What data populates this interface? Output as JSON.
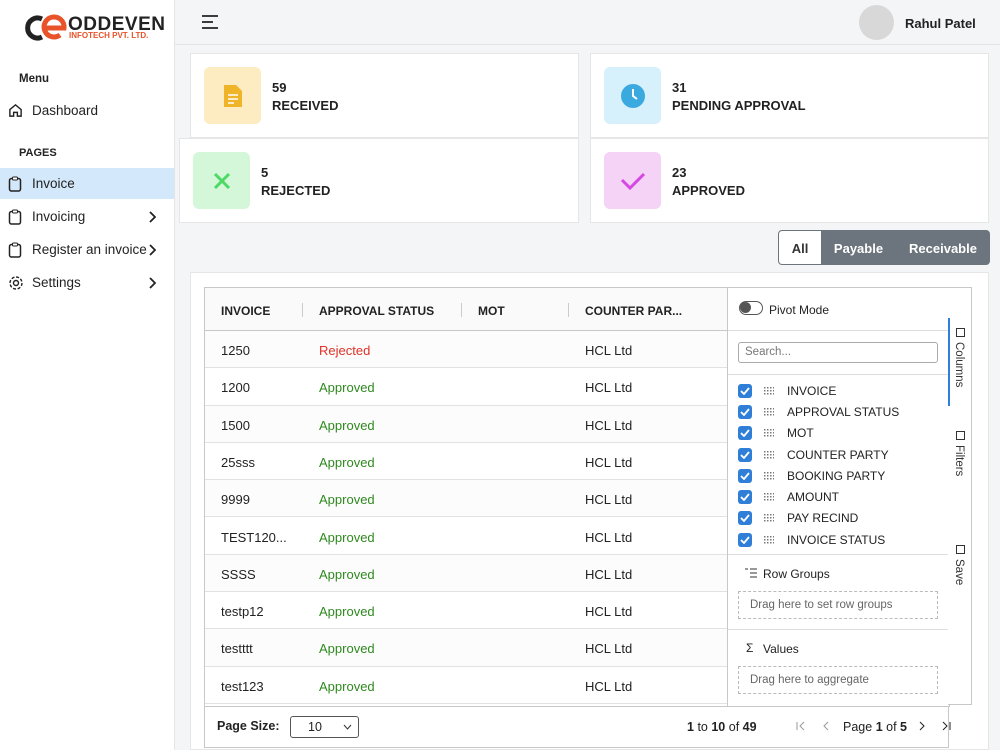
{
  "logo": {
    "name": "ODDEVEN",
    "sub": "INFOTECH PVT. LTD."
  },
  "header": {
    "user": "Rahul Patel"
  },
  "sidebar": {
    "menu_title": "Menu",
    "dashboard": "Dashboard",
    "pages_title": "PAGES",
    "items": [
      "Invoice",
      "Invoicing",
      "Register an invoice",
      "Settings"
    ]
  },
  "stats": [
    {
      "value": 59,
      "label": "RECEIVED",
      "bg": "#fdebc1",
      "fg": "#f0b429"
    },
    {
      "value": 31,
      "label": "PENDING APPROVAL",
      "bg": "#d6f0fc",
      "fg": "#3aa9e0"
    },
    {
      "value": 5,
      "label": "REJECTED",
      "bg": "#d4f7d9",
      "fg": "#4cd964"
    },
    {
      "value": 23,
      "label": "APPROVED",
      "bg": "#f4d3f7",
      "fg": "#d548e4"
    }
  ],
  "tabs": [
    "All",
    "Payable",
    "Receivable"
  ],
  "grid": {
    "columns": [
      "INVOICE",
      "APPROVAL STATUS",
      "MOT",
      "COUNTER PAR..."
    ],
    "rows": [
      {
        "invoice": "1250",
        "status": "Rejected",
        "status_color": "#e03127",
        "counter_party": "HCL Ltd"
      },
      {
        "invoice": "1200",
        "status": "Approved",
        "status_color": "#2e8a1e",
        "counter_party": "HCL Ltd"
      },
      {
        "invoice": "1500",
        "status": "Approved",
        "status_color": "#2e8a1e",
        "counter_party": "HCL Ltd"
      },
      {
        "invoice": "25sss",
        "status": "Approved",
        "status_color": "#2e8a1e",
        "counter_party": "HCL Ltd"
      },
      {
        "invoice": "9999",
        "status": "Approved",
        "status_color": "#2e8a1e",
        "counter_party": "HCL Ltd"
      },
      {
        "invoice": "TEST120...",
        "status": "Approved",
        "status_color": "#2e8a1e",
        "counter_party": "HCL Ltd"
      },
      {
        "invoice": "SSSS",
        "status": "Approved",
        "status_color": "#2e8a1e",
        "counter_party": "HCL Ltd"
      },
      {
        "invoice": "testp12",
        "status": "Approved",
        "status_color": "#2e8a1e",
        "counter_party": "HCL Ltd"
      },
      {
        "invoice": "testttt",
        "status": "Approved",
        "status_color": "#2e8a1e",
        "counter_party": "HCL Ltd"
      },
      {
        "invoice": "test123",
        "status": "Approved",
        "status_color": "#2e8a1e",
        "counter_party": "HCL Ltd"
      }
    ]
  },
  "side_panel": {
    "pivot": "Pivot Mode",
    "search": "Search...",
    "columns": [
      "INVOICE",
      "APPROVAL STATUS",
      "MOT",
      "COUNTER PARTY",
      "BOOKING PARTY",
      "AMOUNT",
      "PAY RECIND",
      "INVOICE STATUS"
    ],
    "row_groups": "Row Groups",
    "row_groups_hint": "Drag here to set row groups",
    "values": "Values",
    "values_hint": "Drag here to aggregate",
    "tabs": [
      "Columns",
      "Filters",
      "Save"
    ]
  },
  "pagination": {
    "page_size_label": "Page Size:",
    "page_size": 10,
    "from": 1,
    "to_word": "to",
    "to": 10,
    "of_word": "of",
    "total": 49,
    "page_word": "Page",
    "page": 1,
    "pages": 5
  }
}
